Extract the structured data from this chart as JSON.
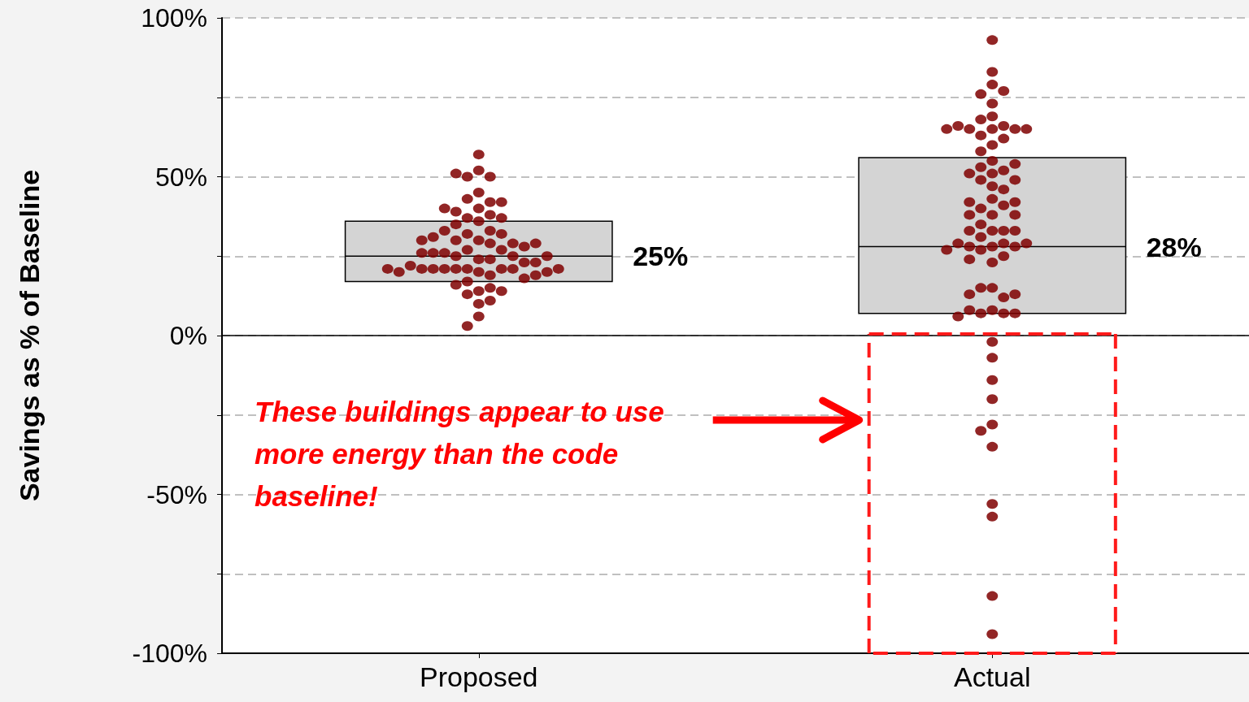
{
  "chart_data": {
    "type": "box",
    "ylabel": "Savings as % of Baseline",
    "categories": [
      "Proposed",
      "Actual"
    ],
    "ylim": [
      -100,
      100
    ],
    "yticks": [
      {
        "value": -100,
        "label": "-100%"
      },
      {
        "value": -75,
        "label": null
      },
      {
        "value": -50,
        "label": "-50%"
      },
      {
        "value": -25,
        "label": null
      },
      {
        "value": 0,
        "label": "0%"
      },
      {
        "value": 25,
        "label": null
      },
      {
        "value": 50,
        "label": "50%"
      },
      {
        "value": 75,
        "label": null
      },
      {
        "value": 100,
        "label": "100%"
      }
    ],
    "grid": "y",
    "marker": "circle",
    "series": [
      {
        "color": "#d4d4d4",
        "boxes": [
          {
            "low": 17,
            "q1": 17,
            "median": 25,
            "q3": 36,
            "high": 36
          },
          {
            "low": 7,
            "q1": 7,
            "median": 28,
            "q3": 56,
            "high": 56
          }
        ]
      },
      {
        "type": "scatter",
        "color": "#7f0000",
        "x": [
          "Proposed",
          "Proposed",
          "Proposed",
          "Proposed",
          "Proposed",
          "Proposed",
          "Proposed",
          "Proposed",
          "Proposed",
          "Proposed",
          "Proposed",
          "Proposed",
          "Proposed",
          "Proposed",
          "Proposed",
          "Proposed",
          "Proposed",
          "Proposed",
          "Proposed",
          "Proposed",
          "Proposed",
          "Proposed",
          "Proposed",
          "Proposed",
          "Proposed",
          "Proposed",
          "Proposed",
          "Proposed",
          "Proposed",
          "Proposed",
          "Proposed",
          "Proposed",
          "Proposed",
          "Proposed",
          "Proposed",
          "Proposed",
          "Proposed",
          "Proposed",
          "Proposed",
          "Proposed",
          "Proposed",
          "Proposed",
          "Proposed",
          "Proposed",
          "Proposed",
          "Proposed",
          "Proposed",
          "Proposed",
          "Proposed",
          "Proposed",
          "Proposed",
          "Proposed",
          "Proposed",
          "Proposed",
          "Proposed",
          "Proposed",
          "Proposed",
          "Proposed",
          "Proposed",
          "Proposed",
          "Proposed",
          "Proposed",
          "Proposed",
          "Proposed",
          "Proposed",
          "Proposed",
          "Proposed"
        ],
        "values": [
          45,
          6,
          43,
          42,
          40,
          37,
          36,
          52,
          50,
          39,
          30,
          27,
          24,
          24,
          29,
          30,
          32,
          32,
          21,
          21,
          21,
          21,
          21,
          21,
          27,
          25,
          26,
          29,
          33,
          25,
          20,
          26,
          23,
          21,
          23,
          28,
          26,
          29,
          33,
          31,
          22,
          19,
          20,
          25,
          30,
          35,
          38,
          37,
          40,
          42,
          50,
          57,
          51,
          14,
          17,
          16,
          13,
          10,
          15,
          14,
          11,
          18,
          3,
          20,
          19,
          21,
          21
        ]
      },
      {
        "type": "scatter",
        "color": "#7f0000",
        "x": [
          "Actual",
          "Actual",
          "Actual",
          "Actual",
          "Actual",
          "Actual",
          "Actual",
          "Actual",
          "Actual",
          "Actual",
          "Actual",
          "Actual",
          "Actual",
          "Actual",
          "Actual",
          "Actual",
          "Actual",
          "Actual",
          "Actual",
          "Actual",
          "Actual",
          "Actual",
          "Actual",
          "Actual",
          "Actual",
          "Actual",
          "Actual",
          "Actual",
          "Actual",
          "Actual",
          "Actual",
          "Actual",
          "Actual",
          "Actual",
          "Actual",
          "Actual",
          "Actual",
          "Actual",
          "Actual",
          "Actual",
          "Actual",
          "Actual",
          "Actual",
          "Actual",
          "Actual",
          "Actual",
          "Actual",
          "Actual",
          "Actual",
          "Actual",
          "Actual",
          "Actual",
          "Actual",
          "Actual",
          "Actual",
          "Actual",
          "Actual",
          "Actual",
          "Actual",
          "Actual",
          "Actual",
          "Actual",
          "Actual",
          "Actual",
          "Actual",
          "Actual",
          "Actual",
          "Actual",
          "Actual",
          "Actual",
          "Actual",
          "Actual",
          "Actual",
          "Actual",
          "Actual",
          "Actual"
        ],
        "values": [
          93,
          83,
          79,
          76,
          77,
          73,
          69,
          68,
          66,
          65,
          65,
          65,
          66,
          65,
          63,
          62,
          65,
          60,
          58,
          55,
          53,
          52,
          51,
          51,
          49,
          49,
          54,
          47,
          43,
          46,
          40,
          41,
          42,
          42,
          38,
          38,
          38,
          35,
          33,
          33,
          33,
          33,
          31,
          28,
          29,
          28,
          27,
          28,
          29,
          29,
          27,
          23,
          25,
          24,
          15,
          15,
          12,
          13,
          13,
          8,
          7,
          7,
          8,
          7,
          6,
          -2,
          -7,
          -14,
          -20,
          -28,
          -30,
          -35,
          -53,
          -57,
          -82,
          -94
        ]
      }
    ],
    "ref_lines": [
      {
        "axis": "y",
        "value": 0,
        "label": null,
        "color": "#000000",
        "line_style": "solid"
      }
    ],
    "annotations": [
      "25%",
      "28%",
      "These buildings appear to use\nmore energy than the code baseline!"
    ]
  }
}
